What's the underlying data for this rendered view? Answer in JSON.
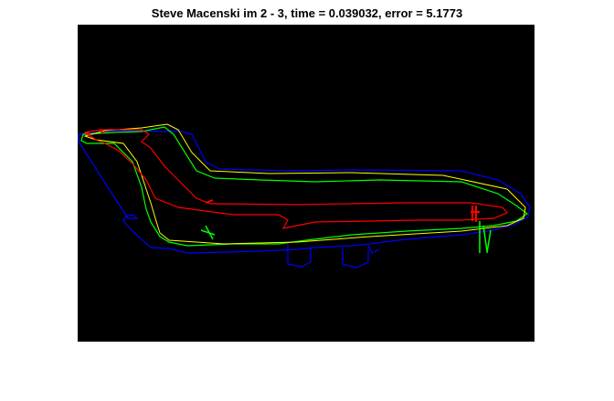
{
  "figure": {
    "title": "Steve Macenski im 2 - 3, time = 0.039032, error = 5.1773"
  },
  "plot": {
    "background": "#000000",
    "outlines": [
      {
        "color": "#ff0000"
      },
      {
        "color": "#00ff00"
      },
      {
        "color": "#0000ff"
      },
      {
        "color": "#ffff00"
      }
    ]
  }
}
